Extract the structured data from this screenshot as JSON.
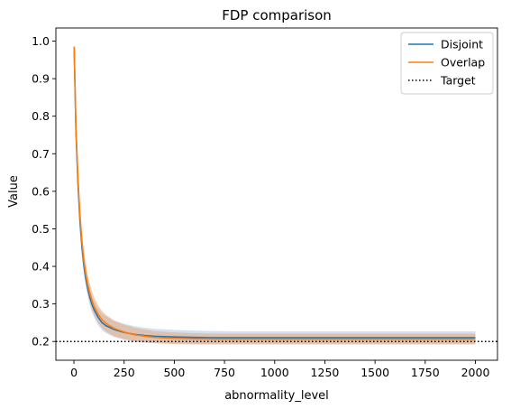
{
  "chart_data": {
    "type": "line",
    "title": "FDP comparison",
    "xlabel": "abnormality_level",
    "ylabel": "Value",
    "xlim": [
      -90,
      2110
    ],
    "ylim": [
      0.15,
      1.035
    ],
    "xticks": [
      0,
      250,
      500,
      750,
      1000,
      1250,
      1500,
      1750,
      2000
    ],
    "yticks": [
      0.2,
      0.3,
      0.4,
      0.5,
      0.6,
      0.7,
      0.8,
      0.9,
      1.0
    ],
    "xtick_labels": [
      "0",
      "250",
      "500",
      "750",
      "1000",
      "1250",
      "1500",
      "1750",
      "2000"
    ],
    "ytick_labels": [
      "0.2",
      "0.3",
      "0.4",
      "0.5",
      "0.6",
      "0.7",
      "0.8",
      "0.9",
      "1.0"
    ],
    "x": [
      1,
      10,
      20,
      30,
      40,
      50,
      60,
      70,
      80,
      90,
      100,
      120,
      140,
      160,
      200,
      250,
      300,
      350,
      400,
      500,
      600,
      700,
      800,
      1000,
      1200,
      1400,
      1600,
      1800,
      2000
    ],
    "series": [
      {
        "name": "Disjoint",
        "color": "#1f77b4",
        "band_color": "#aec7e8",
        "values": [
          0.985,
          0.76,
          0.62,
          0.52,
          0.45,
          0.4,
          0.365,
          0.338,
          0.316,
          0.299,
          0.285,
          0.265,
          0.25,
          0.242,
          0.232,
          0.224,
          0.219,
          0.216,
          0.214,
          0.212,
          0.211,
          0.21,
          0.21,
          0.21,
          0.21,
          0.21,
          0.21,
          0.21,
          0.21
        ],
        "lower": [
          0.975,
          0.73,
          0.59,
          0.49,
          0.425,
          0.378,
          0.343,
          0.317,
          0.295,
          0.278,
          0.264,
          0.244,
          0.23,
          0.222,
          0.212,
          0.205,
          0.2,
          0.198,
          0.197,
          0.195,
          0.194,
          0.194,
          0.194,
          0.194,
          0.194,
          0.194,
          0.194,
          0.194,
          0.194
        ],
        "upper": [
          0.995,
          0.79,
          0.65,
          0.55,
          0.475,
          0.422,
          0.387,
          0.36,
          0.338,
          0.322,
          0.308,
          0.288,
          0.274,
          0.267,
          0.255,
          0.247,
          0.241,
          0.237,
          0.234,
          0.231,
          0.229,
          0.228,
          0.227,
          0.227,
          0.227,
          0.227,
          0.227,
          0.227,
          0.227
        ]
      },
      {
        "name": "Overlap",
        "color": "#ff7f0e",
        "band_color": "#e8a878",
        "values": [
          0.985,
          0.77,
          0.635,
          0.535,
          0.465,
          0.413,
          0.377,
          0.349,
          0.327,
          0.309,
          0.294,
          0.273,
          0.258,
          0.248,
          0.235,
          0.225,
          0.218,
          0.214,
          0.211,
          0.208,
          0.207,
          0.206,
          0.206,
          0.206,
          0.206,
          0.206,
          0.206,
          0.206,
          0.206
        ],
        "lower": [
          0.97,
          0.74,
          0.6,
          0.505,
          0.435,
          0.385,
          0.35,
          0.322,
          0.301,
          0.285,
          0.271,
          0.25,
          0.236,
          0.226,
          0.214,
          0.206,
          0.2,
          0.197,
          0.195,
          0.193,
          0.192,
          0.192,
          0.192,
          0.192,
          0.192,
          0.192,
          0.192,
          0.192,
          0.192
        ],
        "upper": [
          0.995,
          0.8,
          0.665,
          0.565,
          0.495,
          0.44,
          0.403,
          0.376,
          0.353,
          0.334,
          0.318,
          0.296,
          0.281,
          0.271,
          0.256,
          0.245,
          0.237,
          0.232,
          0.228,
          0.224,
          0.222,
          0.221,
          0.221,
          0.221,
          0.221,
          0.221,
          0.221,
          0.221,
          0.221
        ]
      }
    ],
    "reference_line": {
      "name": "Target",
      "value": 0.2,
      "color": "#000000",
      "style": "dotted"
    },
    "legend": {
      "placement": "top-right",
      "entries": [
        "Disjoint",
        "Overlap",
        "Target"
      ]
    },
    "grid": false
  }
}
